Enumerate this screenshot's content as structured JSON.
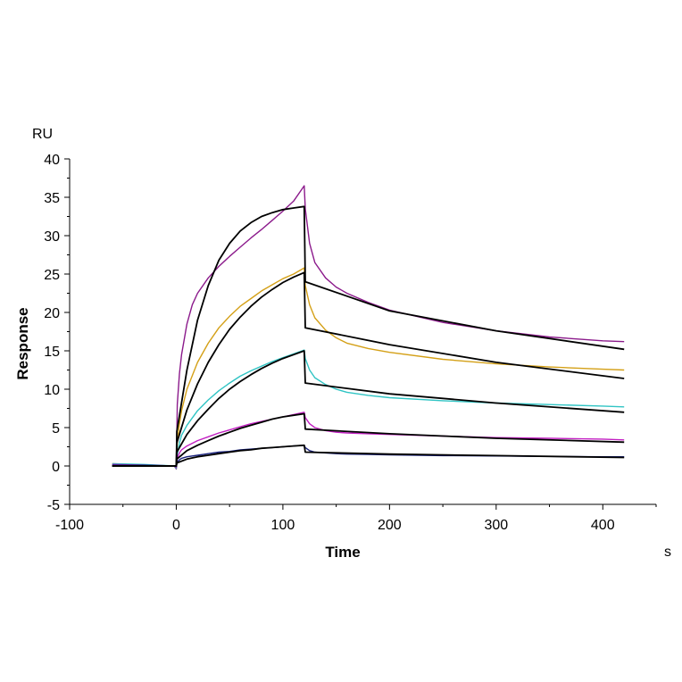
{
  "chart_data": {
    "type": "line",
    "title": "",
    "xlabel": "Time",
    "ylabel": "Response",
    "x_unit": "s",
    "y_unit": "RU",
    "xlim": [
      -100,
      450
    ],
    "ylim": [
      -5,
      40
    ],
    "xticks": [
      -100,
      0,
      100,
      200,
      300,
      400
    ],
    "yticks": [
      -5,
      0,
      5,
      10,
      15,
      20,
      25,
      30,
      35,
      40
    ],
    "grid": false,
    "legend": "none",
    "injection_start": 0,
    "dissociation_start": 120,
    "measured_series": [
      {
        "color": "#8b1a8b",
        "points": [
          [
            -60,
            0.2
          ],
          [
            -30,
            0.1
          ],
          [
            -2,
            0.0
          ],
          [
            0,
            -0.4
          ],
          [
            1,
            8
          ],
          [
            3,
            12
          ],
          [
            5,
            14.5
          ],
          [
            10,
            18.5
          ],
          [
            15,
            21
          ],
          [
            20,
            22.5
          ],
          [
            30,
            24.5
          ],
          [
            40,
            26
          ],
          [
            50,
            27.3
          ],
          [
            60,
            28.5
          ],
          [
            70,
            29.7
          ],
          [
            80,
            30.8
          ],
          [
            90,
            32
          ],
          [
            100,
            33.2
          ],
          [
            110,
            34.5
          ],
          [
            120,
            36.5
          ],
          [
            121,
            33.5
          ],
          [
            125,
            29
          ],
          [
            130,
            26.5
          ],
          [
            140,
            24.5
          ],
          [
            150,
            23.3
          ],
          [
            160,
            22.5
          ],
          [
            180,
            21.3
          ],
          [
            200,
            20.3
          ],
          [
            250,
            18.7
          ],
          [
            300,
            17.6
          ],
          [
            350,
            16.8
          ],
          [
            400,
            16.3
          ],
          [
            420,
            16.2
          ]
        ]
      },
      {
        "color": "#d4a017",
        "points": [
          [
            -60,
            0.3
          ],
          [
            -30,
            0.1
          ],
          [
            -2,
            0.0
          ],
          [
            0,
            -0.3
          ],
          [
            1,
            3
          ],
          [
            3,
            5.5
          ],
          [
            5,
            7.2
          ],
          [
            10,
            10
          ],
          [
            20,
            13.5
          ],
          [
            30,
            16
          ],
          [
            40,
            18
          ],
          [
            50,
            19.5
          ],
          [
            60,
            20.8
          ],
          [
            70,
            21.8
          ],
          [
            80,
            22.8
          ],
          [
            90,
            23.6
          ],
          [
            100,
            24.4
          ],
          [
            110,
            25
          ],
          [
            120,
            25.8
          ],
          [
            121,
            23.5
          ],
          [
            125,
            21
          ],
          [
            130,
            19.3
          ],
          [
            140,
            17.7
          ],
          [
            150,
            16.7
          ],
          [
            160,
            16
          ],
          [
            180,
            15.3
          ],
          [
            200,
            14.8
          ],
          [
            250,
            13.9
          ],
          [
            300,
            13.3
          ],
          [
            350,
            12.9
          ],
          [
            400,
            12.6
          ],
          [
            420,
            12.5
          ]
        ]
      },
      {
        "color": "#30c4c4",
        "points": [
          [
            -60,
            0.3
          ],
          [
            -30,
            0.2
          ],
          [
            -2,
            0.0
          ],
          [
            0,
            -0.3
          ],
          [
            1,
            1.5
          ],
          [
            3,
            3
          ],
          [
            5,
            4
          ],
          [
            10,
            5.3
          ],
          [
            20,
            7.2
          ],
          [
            30,
            8.6
          ],
          [
            40,
            9.8
          ],
          [
            50,
            10.8
          ],
          [
            60,
            11.7
          ],
          [
            70,
            12.4
          ],
          [
            80,
            13
          ],
          [
            90,
            13.6
          ],
          [
            100,
            14.1
          ],
          [
            110,
            14.6
          ],
          [
            120,
            15.1
          ],
          [
            121,
            14
          ],
          [
            125,
            12.5
          ],
          [
            130,
            11.5
          ],
          [
            140,
            10.6
          ],
          [
            150,
            10
          ],
          [
            160,
            9.6
          ],
          [
            180,
            9.2
          ],
          [
            200,
            8.9
          ],
          [
            250,
            8.5
          ],
          [
            300,
            8.2
          ],
          [
            350,
            8
          ],
          [
            400,
            7.8
          ],
          [
            420,
            7.7
          ]
        ]
      },
      {
        "color": "#c21fc2",
        "points": [
          [
            -60,
            0.2
          ],
          [
            -30,
            0.1
          ],
          [
            -2,
            0.0
          ],
          [
            0,
            -0.2
          ],
          [
            1,
            1
          ],
          [
            3,
            1.7
          ],
          [
            5,
            2.1
          ],
          [
            10,
            2.6
          ],
          [
            20,
            3.3
          ],
          [
            30,
            3.8
          ],
          [
            40,
            4.3
          ],
          [
            50,
            4.7
          ],
          [
            60,
            5.1
          ],
          [
            70,
            5.5
          ],
          [
            80,
            5.8
          ],
          [
            90,
            6.1
          ],
          [
            100,
            6.4
          ],
          [
            110,
            6.7
          ],
          [
            120,
            7
          ],
          [
            121,
            6.3
          ],
          [
            125,
            5.5
          ],
          [
            130,
            5
          ],
          [
            140,
            4.6
          ],
          [
            150,
            4.4
          ],
          [
            160,
            4.3
          ],
          [
            180,
            4.2
          ],
          [
            200,
            4.1
          ],
          [
            250,
            3.9
          ],
          [
            300,
            3.7
          ],
          [
            350,
            3.6
          ],
          [
            400,
            3.5
          ],
          [
            420,
            3.4
          ]
        ]
      },
      {
        "color": "#1a237e",
        "points": [
          [
            -60,
            0.1
          ],
          [
            -30,
            0.1
          ],
          [
            -2,
            0.0
          ],
          [
            0,
            -0.1
          ],
          [
            1,
            0.5
          ],
          [
            3,
            0.8
          ],
          [
            5,
            1
          ],
          [
            10,
            1.2
          ],
          [
            20,
            1.4
          ],
          [
            30,
            1.6
          ],
          [
            40,
            1.8
          ],
          [
            50,
            1.9
          ],
          [
            60,
            2.1
          ],
          [
            70,
            2.2
          ],
          [
            80,
            2.3
          ],
          [
            90,
            2.4
          ],
          [
            100,
            2.5
          ],
          [
            110,
            2.6
          ],
          [
            120,
            2.7
          ],
          [
            121,
            2.4
          ],
          [
            125,
            2
          ],
          [
            130,
            1.8
          ],
          [
            140,
            1.7
          ],
          [
            150,
            1.6
          ],
          [
            160,
            1.55
          ],
          [
            180,
            1.5
          ],
          [
            200,
            1.45
          ],
          [
            250,
            1.35
          ],
          [
            300,
            1.3
          ],
          [
            350,
            1.25
          ],
          [
            400,
            1.2
          ],
          [
            420,
            1.2
          ]
        ]
      }
    ],
    "fit_series": [
      {
        "color": "#000000",
        "points": [
          [
            -60,
            0
          ],
          [
            0,
            0
          ],
          [
            0.5,
            4.5
          ],
          [
            10,
            12.5
          ],
          [
            20,
            19
          ],
          [
            30,
            23.5
          ],
          [
            40,
            26.8
          ],
          [
            50,
            29
          ],
          [
            60,
            30.6
          ],
          [
            70,
            31.7
          ],
          [
            80,
            32.5
          ],
          [
            90,
            33
          ],
          [
            100,
            33.4
          ],
          [
            110,
            33.6
          ],
          [
            120,
            33.8
          ],
          [
            121,
            24
          ],
          [
            200,
            20.2
          ],
          [
            300,
            17.6
          ],
          [
            420,
            15.2
          ]
        ]
      },
      {
        "color": "#000000",
        "points": [
          [
            -60,
            0
          ],
          [
            0,
            0
          ],
          [
            0.5,
            3
          ],
          [
            10,
            7.3
          ],
          [
            20,
            10.7
          ],
          [
            30,
            13.5
          ],
          [
            40,
            15.8
          ],
          [
            50,
            17.8
          ],
          [
            60,
            19.4
          ],
          [
            70,
            20.8
          ],
          [
            80,
            22
          ],
          [
            90,
            23
          ],
          [
            100,
            23.9
          ],
          [
            110,
            24.6
          ],
          [
            120,
            25.2
          ],
          [
            121,
            18
          ],
          [
            200,
            15.8
          ],
          [
            300,
            13.5
          ],
          [
            420,
            11.4
          ]
        ]
      },
      {
        "color": "#000000",
        "points": [
          [
            -60,
            0
          ],
          [
            0,
            0
          ],
          [
            0.5,
            1.8
          ],
          [
            10,
            4.1
          ],
          [
            20,
            5.9
          ],
          [
            30,
            7.4
          ],
          [
            40,
            8.8
          ],
          [
            50,
            10
          ],
          [
            60,
            11
          ],
          [
            70,
            11.9
          ],
          [
            80,
            12.7
          ],
          [
            90,
            13.4
          ],
          [
            100,
            14
          ],
          [
            110,
            14.5
          ],
          [
            120,
            15
          ],
          [
            121,
            10.8
          ],
          [
            200,
            9.4
          ],
          [
            300,
            8.2
          ],
          [
            420,
            7
          ]
        ]
      },
      {
        "color": "#000000",
        "points": [
          [
            -60,
            0
          ],
          [
            0,
            0
          ],
          [
            0.5,
            0.9
          ],
          [
            10,
            2
          ],
          [
            20,
            2.7
          ],
          [
            30,
            3.3
          ],
          [
            40,
            3.9
          ],
          [
            50,
            4.4
          ],
          [
            60,
            4.9
          ],
          [
            70,
            5.3
          ],
          [
            80,
            5.7
          ],
          [
            90,
            6.1
          ],
          [
            100,
            6.4
          ],
          [
            110,
            6.6
          ],
          [
            120,
            6.8
          ],
          [
            121,
            4.8
          ],
          [
            200,
            4.2
          ],
          [
            300,
            3.6
          ],
          [
            420,
            3.1
          ]
        ]
      },
      {
        "color": "#000000",
        "points": [
          [
            -60,
            0
          ],
          [
            0,
            0
          ],
          [
            0.5,
            0.4
          ],
          [
            10,
            0.9
          ],
          [
            20,
            1.2
          ],
          [
            30,
            1.4
          ],
          [
            40,
            1.6
          ],
          [
            50,
            1.8
          ],
          [
            60,
            2
          ],
          [
            70,
            2.1
          ],
          [
            80,
            2.3
          ],
          [
            90,
            2.4
          ],
          [
            100,
            2.5
          ],
          [
            110,
            2.6
          ],
          [
            120,
            2.7
          ],
          [
            121,
            1.8
          ],
          [
            200,
            1.55
          ],
          [
            300,
            1.35
          ],
          [
            420,
            1.1
          ]
        ]
      }
    ]
  }
}
